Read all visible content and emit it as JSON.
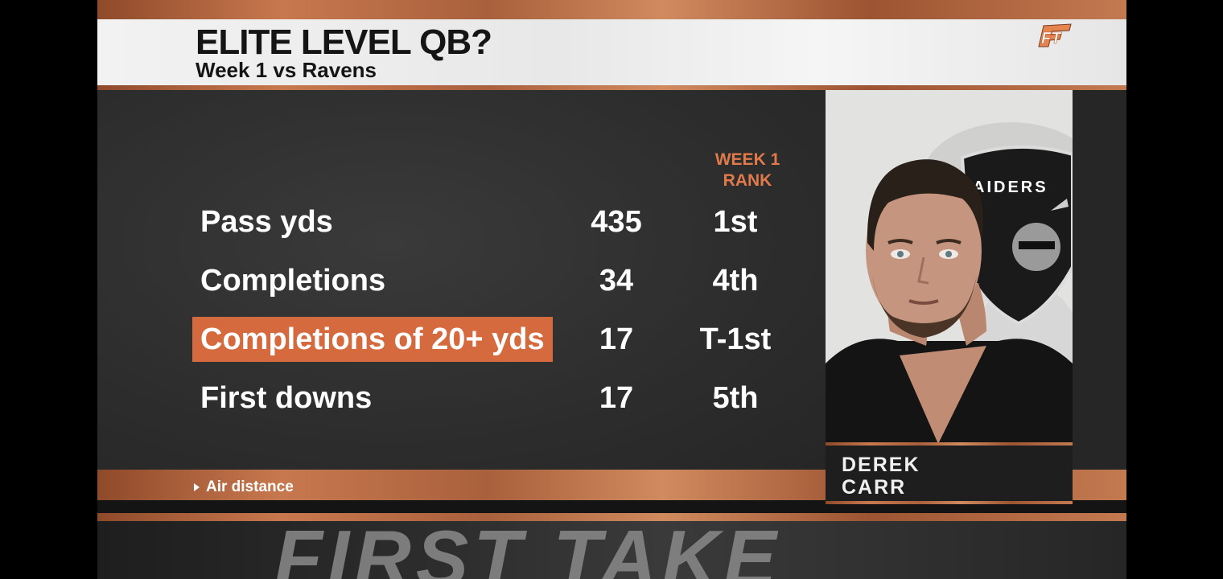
{
  "header": {
    "title": "ELITE LEVEL QB?",
    "subtitle": "Week 1 vs Ravens",
    "network_logo": "FT"
  },
  "table": {
    "rank_header_line1": "WEEK 1",
    "rank_header_line2": "RANK",
    "rows": [
      {
        "label": "Pass yds",
        "value": "435",
        "rank": "1st",
        "highlighted": false
      },
      {
        "label": "Completions",
        "value": "34",
        "rank": "4th",
        "highlighted": false
      },
      {
        "label": "Completions of 20+ yds",
        "value": "17",
        "rank": "T-1st",
        "highlighted": true
      },
      {
        "label": "First downs",
        "value": "17",
        "rank": "5th",
        "highlighted": false
      }
    ]
  },
  "player": {
    "first_name": "DEREK",
    "last_name": "CARR",
    "team_logo_text": "AIDERS"
  },
  "footer": {
    "next_segment": "Air distance",
    "show_name": "FIRST TAKE"
  },
  "colors": {
    "accent": "#d46a3e",
    "rank_header": "#e07a4a",
    "panel": "#2d2d2d"
  }
}
